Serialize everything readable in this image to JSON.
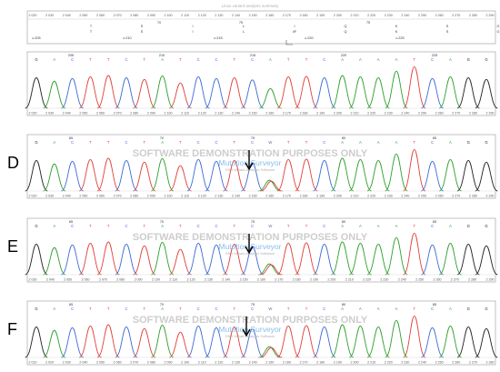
{
  "colors": {
    "A": "#2ca02c",
    "C": "#3d6bd6",
    "G": "#222222",
    "T": "#e0403a",
    "frame": "#9a9a9a",
    "axis_text": "#555555",
    "panel_letter": "#000000",
    "watermark": "#c8c8c8",
    "watermark_brand": "#7fb6e8"
  },
  "header": {
    "title": "Linux variant analysis summary",
    "axis_ticks": [
      "2 020",
      "2 030",
      "2 040",
      "2 050",
      "2 060",
      "2 070",
      "2 080",
      "2 090",
      "2 100",
      "2 110",
      "2 120",
      "2 130",
      "2 140",
      "2 150",
      "2 160",
      "2 170",
      "2 180",
      "2 190",
      "2 200",
      "2 210",
      "2 220",
      "2 230",
      "2 240",
      "2 250",
      "2 260",
      "2 270",
      "2 280",
      "2 290"
    ],
    "codon_row": [
      "c.205",
      "c.210",
      "c.215",
      "c.220",
      "c.225"
    ],
    "aa_row1": [
      "T",
      "S",
      "I",
      "L",
      "I",
      "Q",
      "K",
      "S",
      "G"
    ],
    "aa_row2": [
      "T",
      "S",
      "I",
      "L",
      "I/F",
      "Q",
      "K",
      "S",
      "G"
    ],
    "upper_nums": [
      "70",
      "75",
      "75"
    ]
  },
  "panels": [
    {
      "id": "reference",
      "letter": "",
      "bases": "GACTTCTATCCTCATTCAAAATCAGG",
      "positions": [
        "205",
        "210",
        "215",
        "220",
        "225"
      ],
      "axis_ticks": [
        "2 020",
        "2 030",
        "2 040",
        "2 050",
        "2 060",
        "2 070",
        "2 080",
        "2 090",
        "2 100",
        "2 110",
        "2 120",
        "2 130",
        "2 140",
        "2 150",
        "2 160",
        "2 170",
        "2 180",
        "2 190",
        "2 200",
        "2 210",
        "2 220",
        "2 230",
        "2 240",
        "2 250",
        "2 260",
        "2 270",
        "2 280",
        "2 290"
      ],
      "watermark": false,
      "arrow": false
    },
    {
      "id": "D",
      "letter": "D",
      "bases": "GACTTCTATCCTCWTTCAAAATCAGG",
      "positions": [
        "65",
        "70",
        "75",
        "80",
        "85"
      ],
      "axis_ticks": [
        "2 020",
        "2 030",
        "2 040",
        "2 050",
        "2 060",
        "2 070",
        "2 080",
        "2 090",
        "2 100",
        "2 110",
        "2 120",
        "2 130",
        "2 140",
        "2 150",
        "2 160",
        "2 170",
        "2 180",
        "2 190",
        "2 200",
        "2 210",
        "2 220",
        "2 230",
        "2 240",
        "2 250",
        "2 260",
        "2 270",
        "2 280",
        "2 290"
      ],
      "watermark": true,
      "arrow": true
    },
    {
      "id": "E",
      "letter": "E",
      "bases": "GACTTCTATCCTCWTTCAAAATCAGG",
      "positions": [
        "65",
        "70",
        "75",
        "80",
        "85"
      ],
      "axis_ticks": [
        "2 030",
        "2 040",
        "2 050",
        "2 060",
        "2 070",
        "2 080",
        "2 090",
        "2 100",
        "2 110",
        "2 120",
        "2 130",
        "2 140",
        "2 150",
        "2 160",
        "2 170",
        "2 180",
        "2 190",
        "2 200",
        "2 210",
        "2 220",
        "2 230",
        "2 240",
        "2 250",
        "2 260",
        "2 270",
        "2 280",
        "2 290"
      ],
      "watermark": true,
      "arrow": true
    },
    {
      "id": "F",
      "letter": "F",
      "bases": "GACTTCTATCCTCWTTCAAAATCAGG",
      "positions": [
        "65",
        "70",
        "75",
        "80",
        "85"
      ],
      "axis_ticks": [
        "2 010",
        "2 020",
        "2 030",
        "2 040",
        "2 050",
        "2 060",
        "2 070",
        "2 080",
        "2 090",
        "2 100",
        "2 110",
        "2 120",
        "2 130",
        "2 140",
        "2 150",
        "2 160",
        "2 170",
        "2 180",
        "2 190",
        "2 200",
        "2 210",
        "2 220",
        "2 230",
        "2 240",
        "2 250",
        "2 260",
        "2 270",
        "2 280"
      ],
      "watermark": true,
      "arrow": true
    }
  ],
  "watermark_lines": {
    "line1": "SOFTWARE DEMONSTRATION PURPOSES ONLY",
    "line2": "Mutation Surveyor",
    "line3": "DNA Variant Analysis Software"
  }
}
